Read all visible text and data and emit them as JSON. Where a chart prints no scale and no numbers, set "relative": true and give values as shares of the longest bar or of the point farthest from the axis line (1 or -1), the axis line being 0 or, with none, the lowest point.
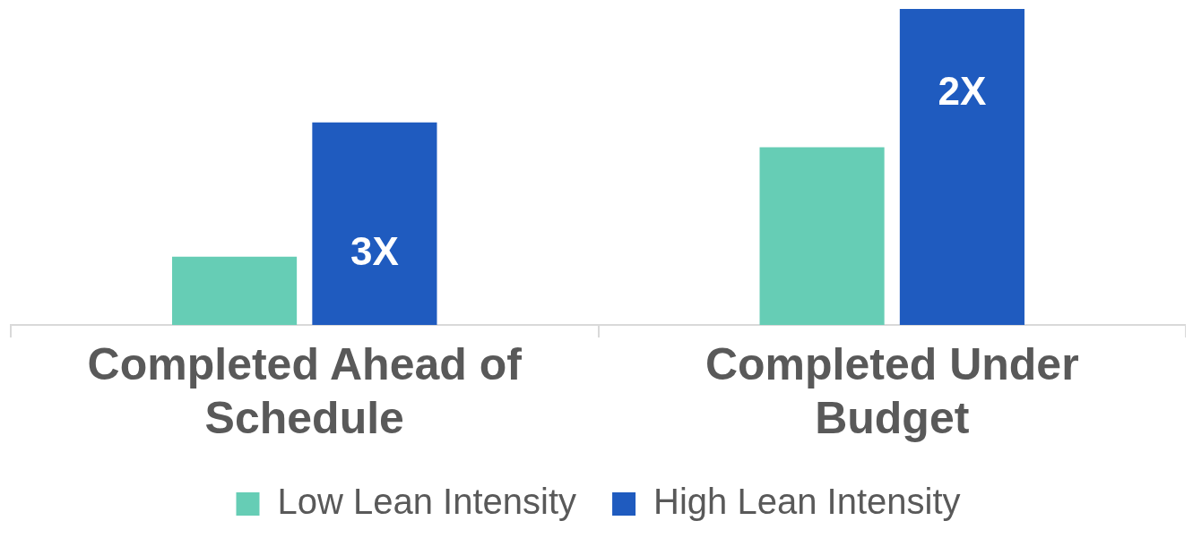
{
  "chart_data": {
    "type": "bar",
    "relative": true,
    "categories": [
      "Completed Ahead of Schedule",
      "Completed Under Budget"
    ],
    "series": [
      {
        "name": "Low Lean Intensity",
        "color": "#66cdb5",
        "values": [
          0.216,
          0.562
        ]
      },
      {
        "name": "High Lean Intensity",
        "color": "#1f5bbf",
        "values": [
          0.641,
          1
        ]
      }
    ],
    "annotations": [
      "3X",
      "2X"
    ],
    "legend": "bottom",
    "grid": false
  }
}
